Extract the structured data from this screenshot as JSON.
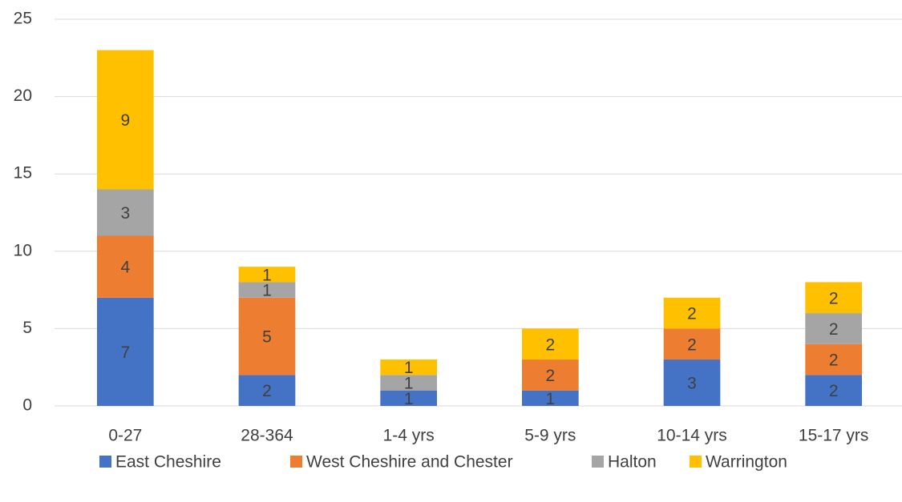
{
  "chart_data": {
    "type": "stacked_bar",
    "categories": [
      "0-27",
      "28-364",
      "1-4 yrs",
      "5-9 yrs",
      "10-14 yrs",
      "15-17 yrs"
    ],
    "series": [
      {
        "name": "East Cheshire",
        "color": "#4472c4",
        "values": [
          7,
          2,
          1,
          1,
          3,
          2
        ]
      },
      {
        "name": "West Cheshire and Chester",
        "color": "#ed7d31",
        "values": [
          4,
          5,
          0,
          2,
          2,
          2
        ]
      },
      {
        "name": "Halton",
        "color": "#a5a5a5",
        "values": [
          3,
          1,
          1,
          0,
          0,
          2
        ]
      },
      {
        "name": "Warrington",
        "color": "#ffc000",
        "values": [
          9,
          1,
          1,
          2,
          2,
          2
        ]
      }
    ],
    "ylim": [
      0,
      25
    ],
    "yticks": [
      0,
      5,
      10,
      15,
      20,
      25
    ],
    "grid": true,
    "legend": "bottom"
  }
}
